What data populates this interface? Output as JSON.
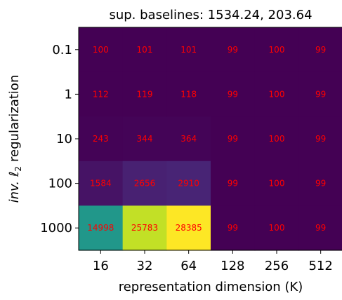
{
  "chart_data": {
    "type": "heatmap",
    "title": "sup. baselines: 1534.24, 203.64",
    "xlabel": "representation dimension (K)",
    "ylabel_prefix": "inv.",
    "ylabel_ell": "ℓ",
    "ylabel_sub": "2",
    "ylabel_suffix": "regularization",
    "x_categories": [
      "16",
      "32",
      "64",
      "128",
      "256",
      "512"
    ],
    "y_categories": [
      "0.1",
      "1",
      "10",
      "100",
      "1000"
    ],
    "values": [
      [
        100,
        101,
        101,
        99,
        100,
        99
      ],
      [
        112,
        119,
        118,
        99,
        100,
        99
      ],
      [
        243,
        344,
        364,
        99,
        100,
        99
      ],
      [
        1584,
        2656,
        2910,
        99,
        100,
        99
      ],
      [
        14998,
        25783,
        28385,
        99,
        100,
        99
      ]
    ],
    "colormap": "viridis",
    "color_range": [
      99,
      28385
    ],
    "annotation_color": "#ff0000"
  }
}
